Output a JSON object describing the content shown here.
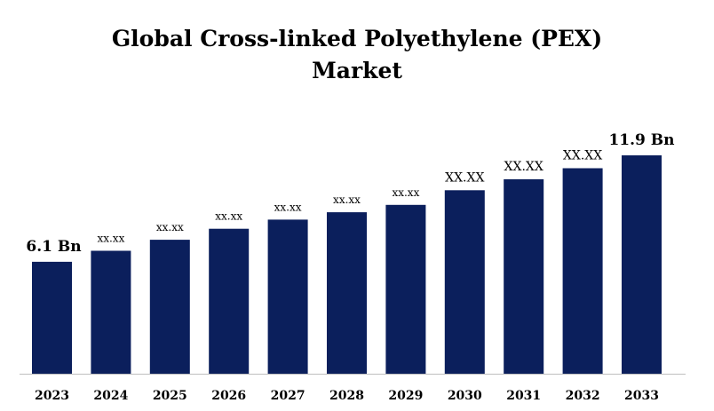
{
  "chart_data": {
    "type": "bar",
    "title_line1": "Global Cross-linked Polyethylene (PEX)",
    "title_line2": "Market",
    "xlabel": "",
    "ylabel": "",
    "categories": [
      "2023",
      "2024",
      "2025",
      "2026",
      "2027",
      "2028",
      "2029",
      "2030",
      "2031",
      "2032",
      "2033"
    ],
    "values": [
      6.1,
      6.7,
      7.3,
      7.9,
      8.4,
      8.8,
      9.2,
      10.0,
      10.6,
      11.2,
      11.9
    ],
    "data_labels": [
      "6.1 Bn",
      "xx.xx",
      "xx.xx",
      "xx.xx",
      "xx.xx",
      "xx.xx",
      "xx.xx",
      "XX.XX",
      "XX.XX",
      "XX.XX",
      "11.9 Bn"
    ],
    "ylim": [
      0,
      11.9
    ],
    "grid": false,
    "legend": "none",
    "bar_color": "#0b1f5c",
    "axis_color": "#bfbfbf"
  }
}
